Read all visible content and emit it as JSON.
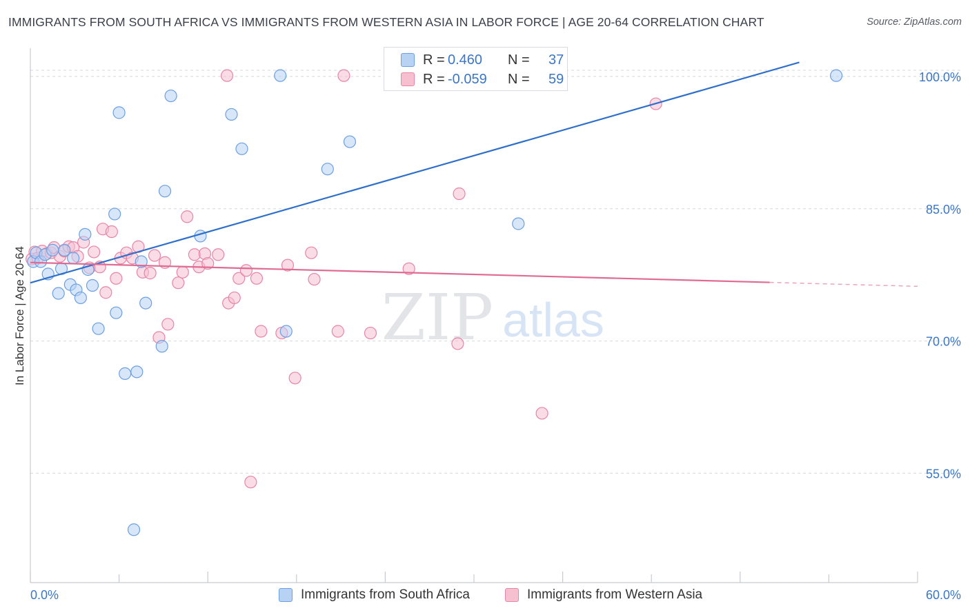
{
  "title": "IMMIGRANTS FROM SOUTH AFRICA VS IMMIGRANTS FROM WESTERN ASIA IN LABOR FORCE | AGE 20-64 CORRELATION CHART",
  "source": "Source: ZipAtlas.com",
  "watermark": {
    "zip": "ZIP",
    "atlas": "atlas"
  },
  "legend": {
    "r_label": "R =",
    "n_label": "N =",
    "rows": [
      {
        "r": "0.460",
        "n": "37"
      },
      {
        "r": "-0.059",
        "n": "59"
      }
    ]
  },
  "chart_data": {
    "type": "scatter",
    "title": "IMMIGRANTS FROM SOUTH AFRICA VS IMMIGRANTS FROM WESTERN ASIA IN LABOR FORCE | AGE 20-64 CORRELATION CHART",
    "xlabel": "",
    "ylabel": "In Labor Force | Age 20-64",
    "xlim": [
      0,
      60
    ],
    "ylim": [
      42.6,
      103.2
    ],
    "x_tick_labels": [
      "0.0%",
      "60.0%"
    ],
    "y_ticks": [
      55,
      70,
      85,
      100
    ],
    "y_tick_labels": [
      "55.0%",
      "70.0%",
      "85.0%",
      "100.0%"
    ],
    "grid": true,
    "legend_position": "top-center",
    "series": [
      {
        "name": "Immigrants from South Africa",
        "color": "#6b9fe3",
        "fill": "#b8d2f4",
        "r": 0.46,
        "n": 37,
        "trend": {
          "x": [
            0,
            52
          ],
          "y": 76.6,
          "y_end": 101.6,
          "dashed_to": 52
        },
        "points": [
          [
            0.2,
            79.0
          ],
          [
            0.4,
            80.0
          ],
          [
            0.7,
            79.0
          ],
          [
            1.0,
            79.8
          ],
          [
            1.2,
            77.6
          ],
          [
            1.5,
            80.3
          ],
          [
            1.9,
            75.4
          ],
          [
            2.1,
            78.2
          ],
          [
            2.3,
            80.3
          ],
          [
            2.7,
            76.4
          ],
          [
            2.9,
            79.4
          ],
          [
            3.1,
            75.8
          ],
          [
            3.4,
            74.9
          ],
          [
            3.7,
            82.1
          ],
          [
            3.9,
            78.1
          ],
          [
            4.2,
            76.3
          ],
          [
            4.6,
            71.4
          ],
          [
            5.7,
            84.4
          ],
          [
            5.8,
            73.2
          ],
          [
            6.0,
            95.9
          ],
          [
            6.4,
            66.3
          ],
          [
            7.0,
            48.6
          ],
          [
            7.2,
            66.5
          ],
          [
            7.5,
            79.0
          ],
          [
            7.8,
            74.3
          ],
          [
            8.9,
            69.4
          ],
          [
            9.1,
            87.0
          ],
          [
            9.5,
            97.8
          ],
          [
            11.5,
            81.9
          ],
          [
            13.6,
            95.7
          ],
          [
            14.3,
            91.8
          ],
          [
            16.9,
            100.1
          ],
          [
            17.3,
            71.1
          ],
          [
            20.1,
            89.5
          ],
          [
            21.6,
            92.6
          ],
          [
            33.0,
            83.3
          ],
          [
            54.5,
            100.1
          ]
        ]
      },
      {
        "name": "Immigrants from Western Asia",
        "color": "#e884a4",
        "fill": "#f6c0d1",
        "r": -0.059,
        "n": 59,
        "trend": {
          "x": [
            0,
            60
          ],
          "y": 78.9,
          "y_end": 76.2,
          "dashed_from": 50
        },
        "points": [
          [
            0.1,
            79.3
          ],
          [
            0.3,
            80.1
          ],
          [
            0.5,
            79.4
          ],
          [
            0.8,
            80.2
          ],
          [
            1.1,
            79.9
          ],
          [
            1.4,
            80.0
          ],
          [
            1.6,
            80.6
          ],
          [
            2.0,
            79.6
          ],
          [
            2.3,
            80.2
          ],
          [
            2.6,
            80.7
          ],
          [
            2.9,
            80.6
          ],
          [
            3.2,
            79.6
          ],
          [
            3.6,
            81.2
          ],
          [
            4.0,
            78.3
          ],
          [
            4.3,
            80.1
          ],
          [
            4.7,
            78.4
          ],
          [
            4.9,
            82.7
          ],
          [
            5.1,
            75.5
          ],
          [
            5.5,
            82.4
          ],
          [
            5.8,
            77.1
          ],
          [
            6.1,
            79.4
          ],
          [
            6.5,
            80.0
          ],
          [
            6.9,
            79.4
          ],
          [
            7.3,
            80.7
          ],
          [
            7.6,
            77.8
          ],
          [
            8.1,
            77.7
          ],
          [
            8.4,
            79.7
          ],
          [
            8.7,
            70.4
          ],
          [
            9.1,
            78.9
          ],
          [
            9.3,
            71.9
          ],
          [
            10.0,
            76.6
          ],
          [
            10.3,
            77.8
          ],
          [
            10.6,
            84.1
          ],
          [
            11.1,
            79.8
          ],
          [
            11.4,
            78.4
          ],
          [
            11.8,
            79.9
          ],
          [
            12.0,
            78.8
          ],
          [
            12.7,
            79.8
          ],
          [
            13.4,
            74.3
          ],
          [
            13.8,
            74.9
          ],
          [
            14.1,
            77.1
          ],
          [
            14.6,
            78.0
          ],
          [
            14.9,
            54.0
          ],
          [
            15.3,
            77.1
          ],
          [
            15.6,
            71.1
          ],
          [
            17.0,
            70.9
          ],
          [
            17.4,
            78.6
          ],
          [
            17.9,
            65.8
          ],
          [
            19.0,
            80.0
          ],
          [
            19.2,
            77.0
          ],
          [
            20.8,
            71.1
          ],
          [
            23.0,
            70.9
          ],
          [
            25.6,
            78.2
          ],
          [
            13.3,
            100.1
          ],
          [
            21.2,
            100.1
          ],
          [
            29.0,
            86.7
          ],
          [
            28.9,
            69.7
          ],
          [
            34.6,
            61.8
          ],
          [
            42.3,
            96.9
          ]
        ]
      }
    ]
  }
}
